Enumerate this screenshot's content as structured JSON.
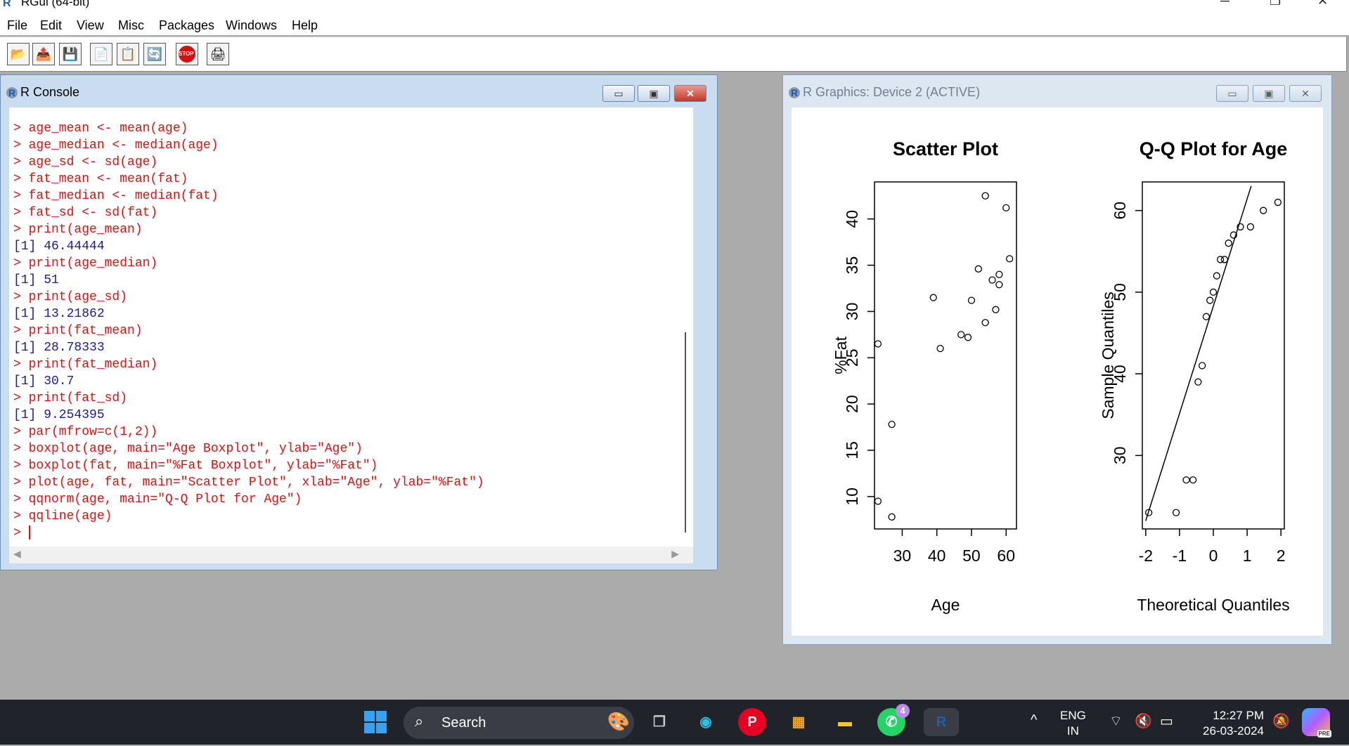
{
  "app": {
    "title": "RGui (64-bit)"
  },
  "menu": [
    "File",
    "Edit",
    "View",
    "Misc",
    "Packages",
    "Windows",
    "Help"
  ],
  "toolbar": {
    "buttons": [
      "open-script-icon",
      "load-workspace-icon",
      "save-icon",
      "copy-icon",
      "paste-icon",
      "refresh-icon",
      "stop-icon",
      "print-icon"
    ],
    "stop_label": "STOP"
  },
  "console": {
    "title": "R Console",
    "lines": [
      {
        "type": "cmd",
        "text": "> age_mean <- mean(age)"
      },
      {
        "type": "cmd",
        "text": "> age_median <- median(age)"
      },
      {
        "type": "cmd",
        "text": "> age_sd <- sd(age)"
      },
      {
        "type": "cmd",
        "text": "> fat_mean <- mean(fat)"
      },
      {
        "type": "cmd",
        "text": "> fat_median <- median(fat)"
      },
      {
        "type": "cmd",
        "text": "> fat_sd <- sd(fat)"
      },
      {
        "type": "cmd",
        "text": "> print(age_mean)"
      },
      {
        "type": "out",
        "text": "[1] 46.44444"
      },
      {
        "type": "cmd",
        "text": "> print(age_median)"
      },
      {
        "type": "out",
        "text": "[1] 51"
      },
      {
        "type": "cmd",
        "text": "> print(age_sd)"
      },
      {
        "type": "out",
        "text": "[1] 13.21862"
      },
      {
        "type": "cmd",
        "text": "> print(fat_mean)"
      },
      {
        "type": "out",
        "text": "[1] 28.78333"
      },
      {
        "type": "cmd",
        "text": "> print(fat_median)"
      },
      {
        "type": "out",
        "text": "[1] 30.7"
      },
      {
        "type": "cmd",
        "text": "> print(fat_sd)"
      },
      {
        "type": "out",
        "text": "[1] 9.254395"
      },
      {
        "type": "cmd",
        "text": "> par(mfrow=c(1,2))"
      },
      {
        "type": "cmd",
        "text": "> boxplot(age, main=\"Age Boxplot\", ylab=\"Age\")"
      },
      {
        "type": "cmd",
        "text": "> boxplot(fat, main=\"%Fat Boxplot\", ylab=\"%Fat\")"
      },
      {
        "type": "cmd",
        "text": "> plot(age, fat, main=\"Scatter Plot\", xlab=\"Age\", ylab=\"%Fat\")"
      },
      {
        "type": "cmd",
        "text": "> qqnorm(age, main=\"Q-Q Plot for Age\")"
      },
      {
        "type": "cmd",
        "text": "> qqline(age)"
      }
    ],
    "prompt": "> "
  },
  "graphics": {
    "title": "R Graphics: Device 2 (ACTIVE)"
  },
  "chart_data": [
    {
      "type": "scatter",
      "title": "Scatter Plot",
      "xlabel": "Age",
      "ylabel": "%Fat",
      "xticks": [
        30,
        40,
        50,
        60
      ],
      "yticks": [
        10,
        15,
        20,
        25,
        30,
        35,
        40
      ],
      "xlim": [
        22,
        63
      ],
      "ylim": [
        6.5,
        44
      ],
      "points": [
        [
          23,
          26.5
        ],
        [
          23,
          9.5
        ],
        [
          27,
          7.8
        ],
        [
          27,
          17.8
        ],
        [
          39,
          31.5
        ],
        [
          41,
          26
        ],
        [
          47,
          27.5
        ],
        [
          49,
          27.2
        ],
        [
          50,
          31.2
        ],
        [
          52,
          34.6
        ],
        [
          54,
          42.5
        ],
        [
          54,
          28.8
        ],
        [
          56,
          33.4
        ],
        [
          57,
          30.2
        ],
        [
          58,
          34
        ],
        [
          58,
          32.9
        ],
        [
          60,
          41.2
        ],
        [
          61,
          35.7
        ]
      ]
    },
    {
      "type": "scatter",
      "title": "Q-Q Plot for Age",
      "xlabel": "Theoretical Quantiles",
      "ylabel": "Sample Quantiles",
      "xticks": [
        -2,
        -1,
        0,
        1,
        2
      ],
      "yticks": [
        30,
        40,
        50,
        60
      ],
      "xlim": [
        -2.1,
        2.1
      ],
      "ylim": [
        21,
        63.5
      ],
      "points": [
        [
          -1.91,
          23
        ],
        [
          -1.1,
          23
        ],
        [
          -0.8,
          27
        ],
        [
          -0.6,
          27
        ],
        [
          -0.45,
          39
        ],
        [
          -0.33,
          41
        ],
        [
          -0.21,
          47
        ],
        [
          -0.1,
          49
        ],
        [
          0,
          50
        ],
        [
          0.1,
          52
        ],
        [
          0.21,
          54
        ],
        [
          0.33,
          54
        ],
        [
          0.45,
          56
        ],
        [
          0.6,
          57
        ],
        [
          0.8,
          58
        ],
        [
          1.1,
          58
        ],
        [
          1.48,
          60
        ],
        [
          1.91,
          61
        ]
      ],
      "reference_line": [
        [
          -2,
          22
        ],
        [
          1.12,
          63
        ]
      ]
    }
  ],
  "taskbar": {
    "search_placeholder": "Search",
    "whatsapp_badge": "4",
    "lang_line1": "ENG",
    "lang_line2": "IN",
    "time": "12:27 PM",
    "date": "26-03-2024",
    "copilot_badge": "PRE"
  }
}
